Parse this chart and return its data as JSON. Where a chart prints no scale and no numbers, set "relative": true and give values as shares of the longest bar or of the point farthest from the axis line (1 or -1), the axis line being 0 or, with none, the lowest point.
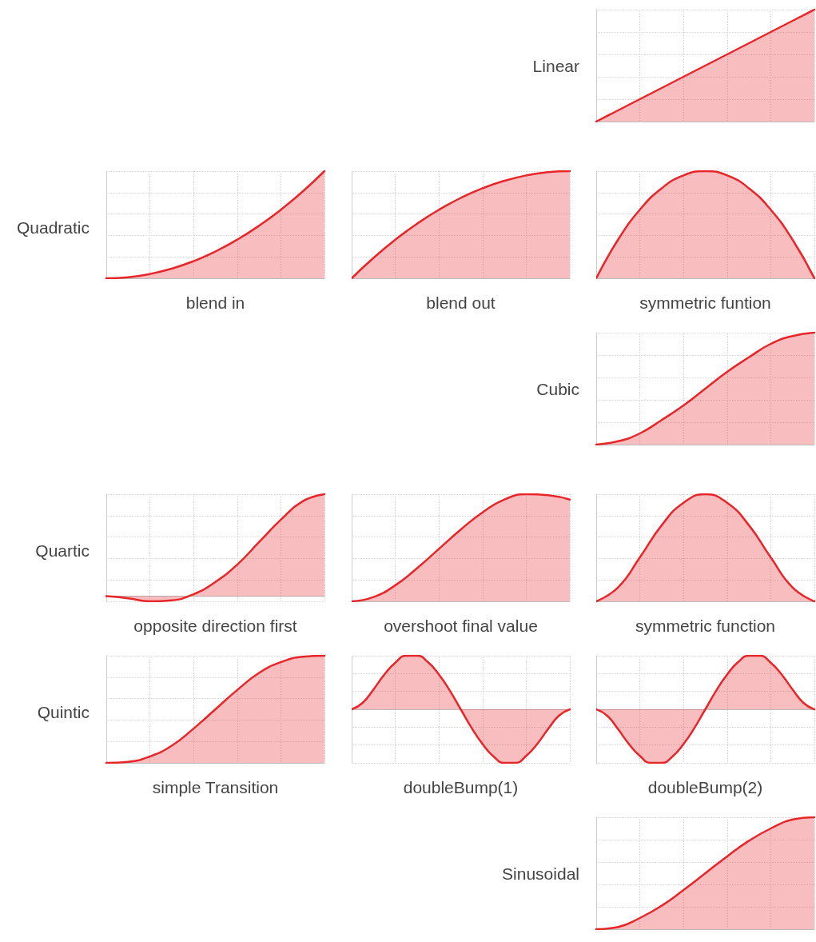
{
  "chart_data": [
    {
      "type": "area",
      "relative": true,
      "grid": true,
      "ylabel": "Linear",
      "color": "#e8262a",
      "categories": [
        null,
        null,
        null,
        null,
        null,
        null,
        null,
        null,
        null,
        null,
        null
      ],
      "values": [
        0,
        0.1,
        0.2,
        0.3,
        0.4,
        0.5,
        0.6,
        0.7,
        0.8,
        0.9,
        1
      ]
    },
    {
      "type": "area",
      "relative": true,
      "grid": true,
      "ylabel": "Quadratic",
      "xlabel": "blend in",
      "color": "#e8262a",
      "categories": [
        null,
        null,
        null,
        null,
        null,
        null,
        null,
        null,
        null,
        null,
        null
      ],
      "values": [
        0,
        0.01,
        0.04,
        0.09,
        0.16,
        0.25,
        0.36,
        0.49,
        0.64,
        0.81,
        1
      ]
    },
    {
      "type": "area",
      "relative": true,
      "grid": true,
      "xlabel": "blend out",
      "color": "#e8262a",
      "categories": [
        null,
        null,
        null,
        null,
        null,
        null,
        null,
        null,
        null,
        null,
        null
      ],
      "values": [
        0,
        0.19,
        0.36,
        0.51,
        0.64,
        0.75,
        0.84,
        0.91,
        0.96,
        0.99,
        1
      ]
    },
    {
      "type": "area",
      "relative": true,
      "grid": true,
      "xlabel": "symmetric funtion",
      "color": "#e8262a",
      "categories": [
        null,
        null,
        null,
        null,
        null,
        null,
        null,
        null,
        null,
        null,
        null
      ],
      "values": [
        0,
        0.36,
        0.64,
        0.84,
        0.96,
        1,
        0.96,
        0.84,
        0.64,
        0.36,
        0
      ]
    },
    {
      "type": "area",
      "relative": true,
      "grid": true,
      "ylabel": "Cubic",
      "color": "#e8262a",
      "categories": [
        null,
        null,
        null,
        null,
        null,
        null,
        null,
        null,
        null,
        null,
        null
      ],
      "values": [
        0,
        0.03,
        0.1,
        0.22,
        0.35,
        0.5,
        0.65,
        0.78,
        0.9,
        0.97,
        1
      ]
    },
    {
      "type": "area",
      "relative": true,
      "grid": true,
      "ylabel": "Quartic",
      "xlabel": "opposite direction first",
      "color": "#e8262a",
      "categories": [
        null,
        null,
        null,
        null,
        null,
        null,
        null,
        null,
        null,
        null,
        null
      ],
      "values": [
        0,
        -0.02,
        -0.05,
        -0.04,
        0.02,
        0.14,
        0.31,
        0.53,
        0.75,
        0.93,
        1
      ]
    },
    {
      "type": "area",
      "relative": true,
      "grid": true,
      "xlabel": "overshoot final value",
      "color": "#e8262a",
      "categories": [
        null,
        null,
        null,
        null,
        null,
        null,
        null,
        null,
        null,
        null,
        null
      ],
      "values": [
        0,
        0.04,
        0.15,
        0.31,
        0.49,
        0.67,
        0.83,
        0.95,
        1,
        0.99,
        0.95
      ]
    },
    {
      "type": "area",
      "relative": true,
      "grid": true,
      "xlabel": "symmetric function",
      "color": "#e8262a",
      "categories": [
        null,
        null,
        null,
        null,
        null,
        null,
        null,
        null,
        null,
        null,
        null
      ],
      "values": [
        0,
        0.13,
        0.41,
        0.71,
        0.92,
        1,
        0.92,
        0.71,
        0.41,
        0.13,
        0
      ]
    },
    {
      "type": "area",
      "relative": true,
      "grid": true,
      "ylabel": "Quintic",
      "xlabel": "simple Transition",
      "color": "#e8262a",
      "categories": [
        null,
        null,
        null,
        null,
        null,
        null,
        null,
        null,
        null,
        null,
        null
      ],
      "values": [
        0,
        0.01,
        0.06,
        0.16,
        0.32,
        0.5,
        0.68,
        0.84,
        0.94,
        0.99,
        1
      ]
    },
    {
      "type": "area",
      "relative": true,
      "grid": true,
      "xlabel": "doubleBump(1)",
      "color": "#e8262a",
      "categories": [
        null,
        null,
        null,
        null,
        null,
        null,
        null,
        null,
        null,
        null,
        null,
        null,
        null,
        null,
        null,
        null,
        null,
        null,
        null,
        null,
        null
      ],
      "values": [
        0,
        0.12,
        0.37,
        0.65,
        0.87,
        1,
        1,
        0.88,
        0.65,
        0.35,
        0,
        -0.35,
        -0.65,
        -0.88,
        -1,
        -1,
        -0.87,
        -0.65,
        -0.37,
        -0.12,
        0
      ]
    },
    {
      "type": "area",
      "relative": true,
      "grid": true,
      "xlabel": "doubleBump(2)",
      "color": "#e8262a",
      "categories": [
        null,
        null,
        null,
        null,
        null,
        null,
        null,
        null,
        null,
        null,
        null,
        null,
        null,
        null,
        null,
        null,
        null,
        null,
        null,
        null,
        null
      ],
      "values": [
        0,
        -0.12,
        -0.37,
        -0.65,
        -0.87,
        -1,
        -1,
        -0.88,
        -0.65,
        -0.35,
        0,
        0.35,
        0.65,
        0.88,
        1,
        1,
        0.87,
        0.65,
        0.37,
        0.12,
        0
      ]
    },
    {
      "type": "area",
      "relative": true,
      "grid": true,
      "ylabel": "Sinusoidal",
      "color": "#e8262a",
      "categories": [
        null,
        null,
        null,
        null,
        null,
        null,
        null,
        null,
        null,
        null,
        null
      ],
      "values": [
        0,
        0.02,
        0.1,
        0.21,
        0.35,
        0.5,
        0.65,
        0.79,
        0.9,
        0.98,
        1
      ]
    }
  ]
}
